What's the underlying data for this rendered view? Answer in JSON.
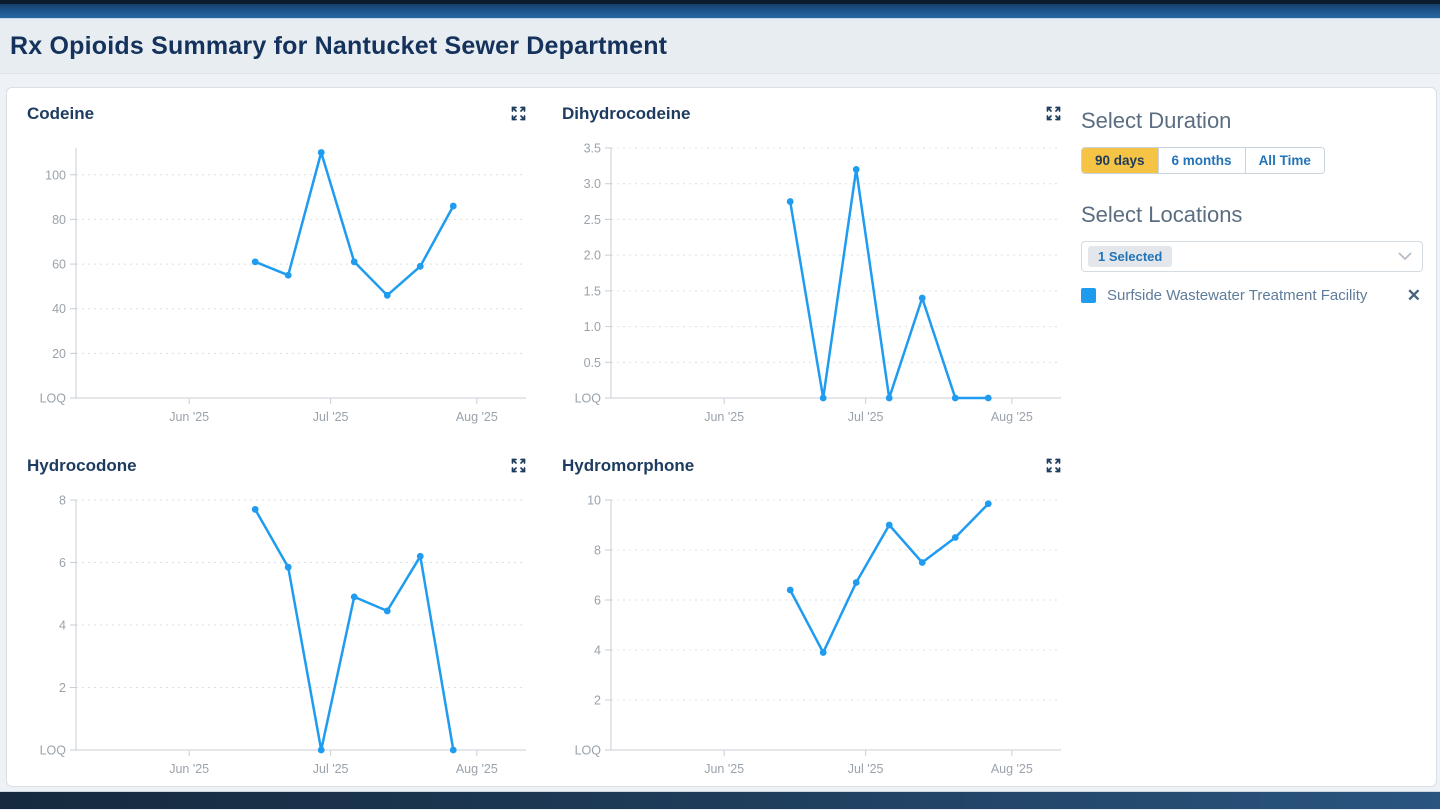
{
  "header": {
    "title": "Rx Opioids Summary for Nantucket Sewer Department"
  },
  "sidebar": {
    "duration": {
      "heading": "Select Duration",
      "options": [
        {
          "label": "90 days",
          "selected": true
        },
        {
          "label": "6 months",
          "selected": false
        },
        {
          "label": "All Time",
          "selected": false
        }
      ]
    },
    "locations": {
      "heading": "Select Locations",
      "dropdown_value": "1 Selected",
      "chevron_icon": "chevron-down",
      "items": [
        {
          "name": "Surfside Wastewater Treatment Facility",
          "swatch_color": "#1f9bf0",
          "remove_icon": "x",
          "remove_glyph": "✕"
        }
      ]
    }
  },
  "colors": {
    "line_blue": "#1f9bf0",
    "accent_yellow": "#f6c444",
    "navy_text": "#14325c",
    "axis_gray": "#9aa2ab",
    "grid_gray": "#dcdfe3",
    "axis_line": "#c9ced4"
  },
  "chart_data": [
    {
      "type": "line",
      "title": "Codeine",
      "series_name": "Surfside Wastewater Treatment Facility",
      "x_domain_days": [
        0,
        95
      ],
      "x_ticks": [
        {
          "day": 24,
          "label": "Jun '25"
        },
        {
          "day": 54,
          "label": "Jul '25"
        },
        {
          "day": 85,
          "label": "Aug '25"
        }
      ],
      "y_max": 112,
      "y_ticks": [
        {
          "value": 0,
          "label": "LOQ"
        },
        {
          "value": 20,
          "label": "20"
        },
        {
          "value": 40,
          "label": "40"
        },
        {
          "value": 60,
          "label": "60"
        },
        {
          "value": 80,
          "label": "80"
        },
        {
          "value": 100,
          "label": "100"
        }
      ],
      "x_days": [
        38,
        45,
        52,
        59,
        66,
        73,
        80
      ],
      "values": [
        61,
        55,
        110,
        61,
        46,
        59,
        86
      ]
    },
    {
      "type": "line",
      "title": "Dihydrocodeine",
      "series_name": "Surfside Wastewater Treatment Facility",
      "x_domain_days": [
        0,
        95
      ],
      "x_ticks": [
        {
          "day": 24,
          "label": "Jun '25"
        },
        {
          "day": 54,
          "label": "Jul '25"
        },
        {
          "day": 85,
          "label": "Aug '25"
        }
      ],
      "y_max": 3.5,
      "y_ticks": [
        {
          "value": 0,
          "label": "LOQ"
        },
        {
          "value": 0.5,
          "label": "0.5"
        },
        {
          "value": 1.0,
          "label": "1.0"
        },
        {
          "value": 1.5,
          "label": "1.5"
        },
        {
          "value": 2.0,
          "label": "2.0"
        },
        {
          "value": 2.5,
          "label": "2.5"
        },
        {
          "value": 3.0,
          "label": "3.0"
        },
        {
          "value": 3.5,
          "label": "3.5"
        }
      ],
      "x_days": [
        38,
        45,
        52,
        59,
        66,
        73,
        80
      ],
      "values": [
        2.75,
        0,
        3.2,
        0,
        1.4,
        0,
        0
      ]
    },
    {
      "type": "line",
      "title": "Hydrocodone",
      "series_name": "Surfside Wastewater Treatment Facility",
      "x_domain_days": [
        0,
        95
      ],
      "x_ticks": [
        {
          "day": 24,
          "label": "Jun '25"
        },
        {
          "day": 54,
          "label": "Jul '25"
        },
        {
          "day": 85,
          "label": "Aug '25"
        }
      ],
      "y_max": 8,
      "y_ticks": [
        {
          "value": 0,
          "label": "LOQ"
        },
        {
          "value": 2,
          "label": "2"
        },
        {
          "value": 4,
          "label": "4"
        },
        {
          "value": 6,
          "label": "6"
        },
        {
          "value": 8,
          "label": "8"
        }
      ],
      "x_days": [
        38,
        45,
        52,
        59,
        66,
        73,
        80
      ],
      "values": [
        7.7,
        5.85,
        0,
        4.9,
        4.45,
        6.2,
        0
      ]
    },
    {
      "type": "line",
      "title": "Hydromorphone",
      "series_name": "Surfside Wastewater Treatment Facility",
      "x_domain_days": [
        0,
        95
      ],
      "x_ticks": [
        {
          "day": 24,
          "label": "Jun '25"
        },
        {
          "day": 54,
          "label": "Jul '25"
        },
        {
          "day": 85,
          "label": "Aug '25"
        }
      ],
      "y_max": 10,
      "y_ticks": [
        {
          "value": 0,
          "label": "LOQ"
        },
        {
          "value": 2,
          "label": "2"
        },
        {
          "value": 4,
          "label": "4"
        },
        {
          "value": 6,
          "label": "6"
        },
        {
          "value": 8,
          "label": "8"
        },
        {
          "value": 10,
          "label": "10"
        }
      ],
      "x_days": [
        38,
        45,
        52,
        59,
        66,
        73,
        80
      ],
      "values": [
        6.4,
        3.9,
        6.7,
        9.0,
        7.5,
        8.5,
        9.85
      ]
    }
  ]
}
